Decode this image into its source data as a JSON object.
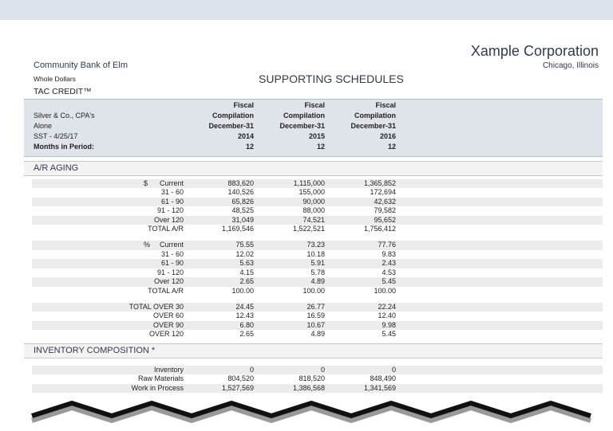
{
  "header": {
    "company": "Xample Corporation",
    "location": "Chicago, Illinois",
    "bank": "Community Bank of Elm",
    "units": "Whole Dollars",
    "title": "SUPPORTING SCHEDULES",
    "subtitle": "TAC CREDIT™"
  },
  "columns_header": {
    "info": [
      "Silver & Co., CPA's",
      "Alone",
      "SST - 4/25/17",
      "Months in Period:"
    ],
    "columns": [
      {
        "lines": [
          "Fiscal",
          "Compilation",
          "December-31",
          "2014"
        ],
        "months": "12"
      },
      {
        "lines": [
          "Fiscal",
          "Compilation",
          "December-31",
          "2015"
        ],
        "months": "12"
      },
      {
        "lines": [
          "Fiscal",
          "Compilation",
          "December-31",
          "2016"
        ],
        "months": "12"
      }
    ]
  },
  "sections": [
    {
      "title": "A/R AGING",
      "groups": [
        {
          "prefix": "$",
          "rows": [
            {
              "label": "Current",
              "values": [
                "883,620",
                "1,115,000",
                "1,365,852"
              ]
            },
            {
              "label": "31 - 60",
              "values": [
                "140,526",
                "155,000",
                "172,694"
              ]
            },
            {
              "label": "61 - 90",
              "values": [
                "65,826",
                "90,000",
                "42,632"
              ]
            },
            {
              "label": "91 - 120",
              "values": [
                "48,525",
                "88,000",
                "79,582"
              ]
            },
            {
              "label": "Over 120",
              "values": [
                "31,049",
                "74,521",
                "95,652"
              ]
            },
            {
              "label": "TOTAL A/R",
              "values": [
                "1,169,546",
                "1,522,521",
                "1,756,412"
              ]
            }
          ]
        },
        {
          "prefix": "%",
          "rows": [
            {
              "label": "Current",
              "values": [
                "75.55",
                "73.23",
                "77.76"
              ]
            },
            {
              "label": "31 - 60",
              "values": [
                "12.02",
                "10.18",
                "9.83"
              ]
            },
            {
              "label": "61 - 90",
              "values": [
                "5.63",
                "5.91",
                "2.43"
              ]
            },
            {
              "label": "91 - 120",
              "values": [
                "4.15",
                "5.78",
                "4.53"
              ]
            },
            {
              "label": "Over 120",
              "values": [
                "2.65",
                "4.89",
                "5.45"
              ]
            },
            {
              "label": "TOTAL A/R",
              "values": [
                "100.00",
                "100.00",
                "100.00"
              ]
            }
          ]
        },
        {
          "rows": [
            {
              "label": "TOTAL OVER 30",
              "values": [
                "24.45",
                "26.77",
                "22.24"
              ]
            },
            {
              "label": "OVER 60",
              "values": [
                "12.43",
                "16.59",
                "12.40"
              ]
            },
            {
              "label": "OVER 90",
              "values": [
                "6.80",
                "10.67",
                "9.98"
              ]
            },
            {
              "label": "OVER 120",
              "values": [
                "2.65",
                "4.89",
                "5.45"
              ]
            }
          ]
        }
      ]
    },
    {
      "title": "INVENTORY COMPOSITION *",
      "groups": [
        {
          "rows": [
            {
              "label": "Inventory",
              "values": [
                "0",
                "0",
                "0"
              ]
            },
            {
              "label": "Raw Materials",
              "values": [
                "804,520",
                "818,520",
                "848,490"
              ]
            },
            {
              "label": "Work in Process",
              "values": [
                "1,527,569",
                "1,386,568",
                "1,341,569"
              ]
            }
          ]
        }
      ]
    }
  ]
}
